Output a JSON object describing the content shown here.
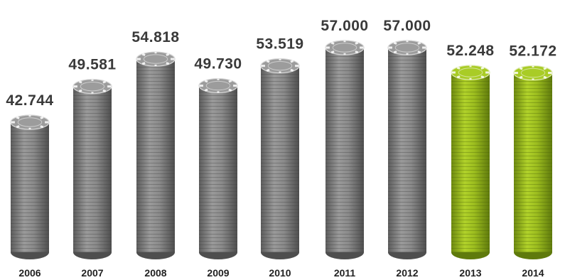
{
  "chart_data": {
    "type": "bar",
    "style": "stacked poker chips",
    "categories": [
      "2006",
      "2007",
      "2008",
      "2009",
      "2010",
      "2011",
      "2012",
      "2013",
      "2014"
    ],
    "values": [
      42744,
      49581,
      54818,
      49730,
      53519,
      57000,
      57000,
      52248,
      52172
    ],
    "value_labels": [
      "42.744",
      "49.581",
      "54.818",
      "49.730",
      "53.519",
      "57.000",
      "57.000",
      "52.248",
      "52.172"
    ],
    "title": "",
    "xlabel": "",
    "ylabel": "",
    "grid": false,
    "colors": {
      "default": "#8a8a8a",
      "highlight": "#9bbd1e",
      "highlight_categories": [
        "2013",
        "2014"
      ]
    }
  }
}
